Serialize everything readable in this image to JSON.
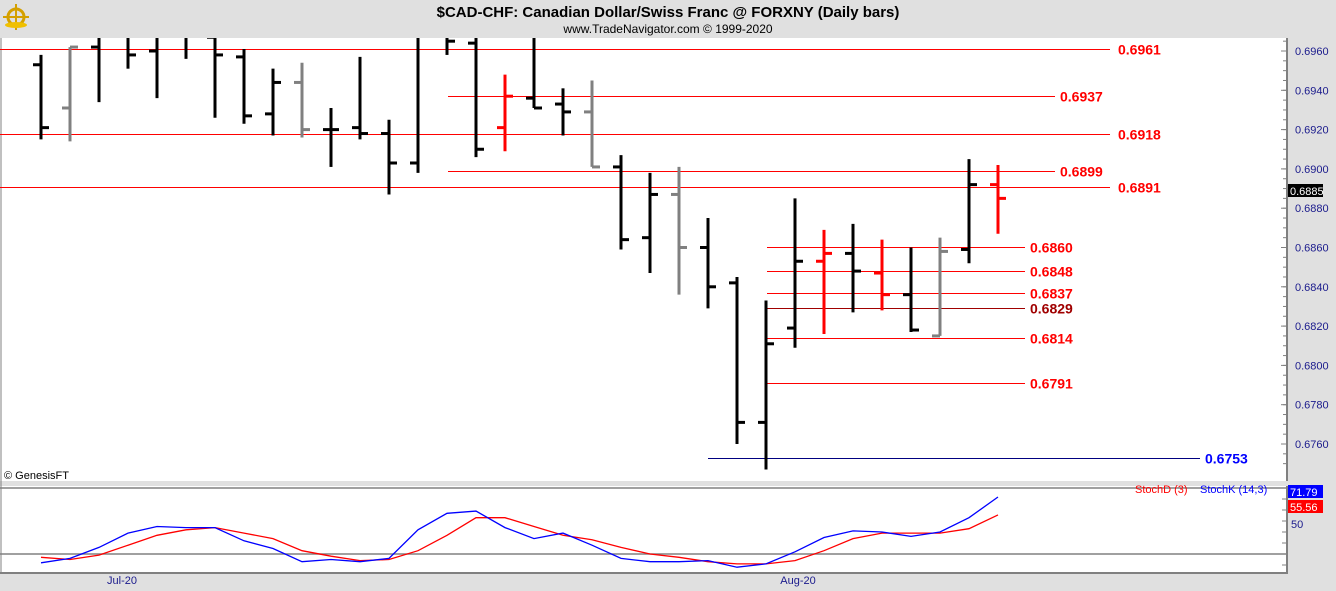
{
  "header": {
    "title": "$CAD-CHF:  Canadian Dollar/Swiss Franc @ FORXNY  (Daily bars)",
    "subtitle": "www.TradeNavigator.com © 1999-2020",
    "logo_icon": "ship-wheel-logo-icon"
  },
  "copyright": "© GenesisFT",
  "chart_data": [
    {
      "type": "ohlc",
      "title": "$CAD-CHF:  Canadian Dollar/Swiss Franc @ FORXNY  (Daily bars)",
      "ylim": [
        0.6745,
        0.6966
      ],
      "y_ticks": [
        "0.6960",
        "0.6940",
        "0.6920",
        "0.6900",
        "0.6880",
        "0.6860",
        "0.6840",
        "0.6820",
        "0.6800",
        "0.6780",
        "0.6760"
      ],
      "x_tick_labels": [
        "Jul-20",
        "Aug-20"
      ],
      "last_price": "0.6885",
      "colors": {
        "black": "#000000",
        "gray": "#808080",
        "red": "#ff0000"
      },
      "bars": [
        {
          "o": 0.6953,
          "h": 0.6958,
          "l": 0.6915,
          "c": 0.6921,
          "color": "black"
        },
        {
          "o": 0.6931,
          "h": 0.6962,
          "l": 0.6914,
          "c": 0.6962,
          "color": "gray"
        },
        {
          "o": 0.6962,
          "h": 0.697,
          "l": 0.6934,
          "c": 0.6968,
          "color": "black"
        },
        {
          "o": 0.6968,
          "h": 0.697,
          "l": 0.6951,
          "c": 0.6958,
          "color": "black"
        },
        {
          "o": 0.696,
          "h": 0.697,
          "l": 0.6936,
          "c": 0.6968,
          "color": "black"
        },
        {
          "o": 0.6968,
          "h": 0.697,
          "l": 0.6956,
          "c": 0.6968,
          "color": "black"
        },
        {
          "o": 0.6967,
          "h": 0.697,
          "l": 0.6926,
          "c": 0.6958,
          "color": "black"
        },
        {
          "o": 0.6957,
          "h": 0.6961,
          "l": 0.6923,
          "c": 0.6927,
          "color": "black"
        },
        {
          "o": 0.6928,
          "h": 0.6951,
          "l": 0.6917,
          "c": 0.6944,
          "color": "black"
        },
        {
          "o": 0.6944,
          "h": 0.6954,
          "l": 0.6916,
          "c": 0.692,
          "color": "gray"
        },
        {
          "o": 0.692,
          "h": 0.6931,
          "l": 0.6901,
          "c": 0.692,
          "color": "black"
        },
        {
          "o": 0.6921,
          "h": 0.6957,
          "l": 0.6915,
          "c": 0.6918,
          "color": "black"
        },
        {
          "o": 0.6918,
          "h": 0.6925,
          "l": 0.6887,
          "c": 0.6903,
          "color": "black"
        },
        {
          "o": 0.6903,
          "h": 0.697,
          "l": 0.6898,
          "c": 0.6968,
          "color": "black"
        },
        {
          "o": 0.6968,
          "h": 0.697,
          "l": 0.6958,
          "c": 0.6965,
          "color": "black"
        },
        {
          "o": 0.6964,
          "h": 0.697,
          "l": 0.6906,
          "c": 0.691,
          "color": "black"
        },
        {
          "o": 0.6921,
          "h": 0.6948,
          "l": 0.6909,
          "c": 0.6937,
          "color": "red"
        },
        {
          "o": 0.6936,
          "h": 0.697,
          "l": 0.6931,
          "c": 0.6931,
          "color": "black"
        },
        {
          "o": 0.6933,
          "h": 0.6941,
          "l": 0.6917,
          "c": 0.6929,
          "color": "black"
        },
        {
          "o": 0.6929,
          "h": 0.6945,
          "l": 0.6901,
          "c": 0.6901,
          "color": "gray"
        },
        {
          "o": 0.6901,
          "h": 0.6907,
          "l": 0.6859,
          "c": 0.6864,
          "color": "black"
        },
        {
          "o": 0.6865,
          "h": 0.6898,
          "l": 0.6847,
          "c": 0.6887,
          "color": "black"
        },
        {
          "o": 0.6887,
          "h": 0.6901,
          "l": 0.6836,
          "c": 0.686,
          "color": "gray"
        },
        {
          "o": 0.686,
          "h": 0.6875,
          "l": 0.6829,
          "c": 0.684,
          "color": "black"
        },
        {
          "o": 0.6842,
          "h": 0.6845,
          "l": 0.676,
          "c": 0.6771,
          "color": "black"
        },
        {
          "o": 0.6771,
          "h": 0.6833,
          "l": 0.6747,
          "c": 0.6811,
          "color": "black"
        },
        {
          "o": 0.6819,
          "h": 0.6885,
          "l": 0.6809,
          "c": 0.6853,
          "color": "black"
        },
        {
          "o": 0.6853,
          "h": 0.6869,
          "l": 0.6816,
          "c": 0.6857,
          "color": "red"
        },
        {
          "o": 0.6857,
          "h": 0.6872,
          "l": 0.6827,
          "c": 0.6848,
          "color": "black"
        },
        {
          "o": 0.6847,
          "h": 0.6864,
          "l": 0.6828,
          "c": 0.6836,
          "color": "red"
        },
        {
          "o": 0.6836,
          "h": 0.686,
          "l": 0.6817,
          "c": 0.6818,
          "color": "black"
        },
        {
          "o": 0.6815,
          "h": 0.6865,
          "l": 0.6815,
          "c": 0.6858,
          "color": "gray"
        },
        {
          "o": 0.6859,
          "h": 0.6905,
          "l": 0.6852,
          "c": 0.6892,
          "color": "black"
        },
        {
          "o": 0.6892,
          "h": 0.6902,
          "l": 0.6867,
          "c": 0.6885,
          "color": "red"
        }
      ],
      "levels": [
        {
          "label": "0.6961",
          "value": 0.6961,
          "color": "#ff0000"
        },
        {
          "label": "0.6937",
          "value": 0.6937,
          "color": "#ff0000"
        },
        {
          "label": "0.6918",
          "value": 0.6918,
          "color": "#ff0000"
        },
        {
          "label": "0.6899",
          "value": 0.6899,
          "color": "#ff0000"
        },
        {
          "label": "0.6891",
          "value": 0.6891,
          "color": "#ff0000"
        },
        {
          "label": "0.6860",
          "value": 0.686,
          "color": "#ff0000"
        },
        {
          "label": "0.6848",
          "value": 0.6848,
          "color": "#ff0000"
        },
        {
          "label": "0.6837",
          "value": 0.6837,
          "color": "#ff0000"
        },
        {
          "label": "0.6829",
          "value": 0.6829,
          "color": "#a00000"
        },
        {
          "label": "0.6814",
          "value": 0.6814,
          "color": "#ff0000"
        },
        {
          "label": "0.6791",
          "value": 0.6791,
          "color": "#ff0000"
        },
        {
          "label": "0.6753",
          "value": 0.6753,
          "color": "#0000ff"
        }
      ]
    },
    {
      "type": "line",
      "series": [
        {
          "name": "StochD (3)",
          "color": "#ff0000",
          "last": "55.56",
          "values": [
            17,
            15,
            19,
            28,
            37,
            42,
            44,
            39,
            34,
            23,
            18,
            14,
            15,
            23,
            37,
            53,
            53,
            45,
            37,
            33,
            26,
            20,
            17,
            13,
            11,
            11,
            14,
            23,
            34,
            39,
            39,
            39,
            43,
            55.56
          ]
        },
        {
          "name": "StochK (14,3)",
          "color": "#0000ff",
          "last": "71.79",
          "values": [
            12,
            16,
            26,
            39,
            45,
            44,
            44,
            32,
            25,
            13,
            15,
            13,
            16,
            42,
            57,
            59,
            44,
            34,
            39,
            28,
            16,
            13,
            13,
            14,
            8,
            11,
            22,
            35,
            41,
            40,
            36,
            40,
            53,
            71.79
          ]
        }
      ],
      "reference_lines": [
        80,
        20
      ],
      "y_tick": "50"
    }
  ]
}
